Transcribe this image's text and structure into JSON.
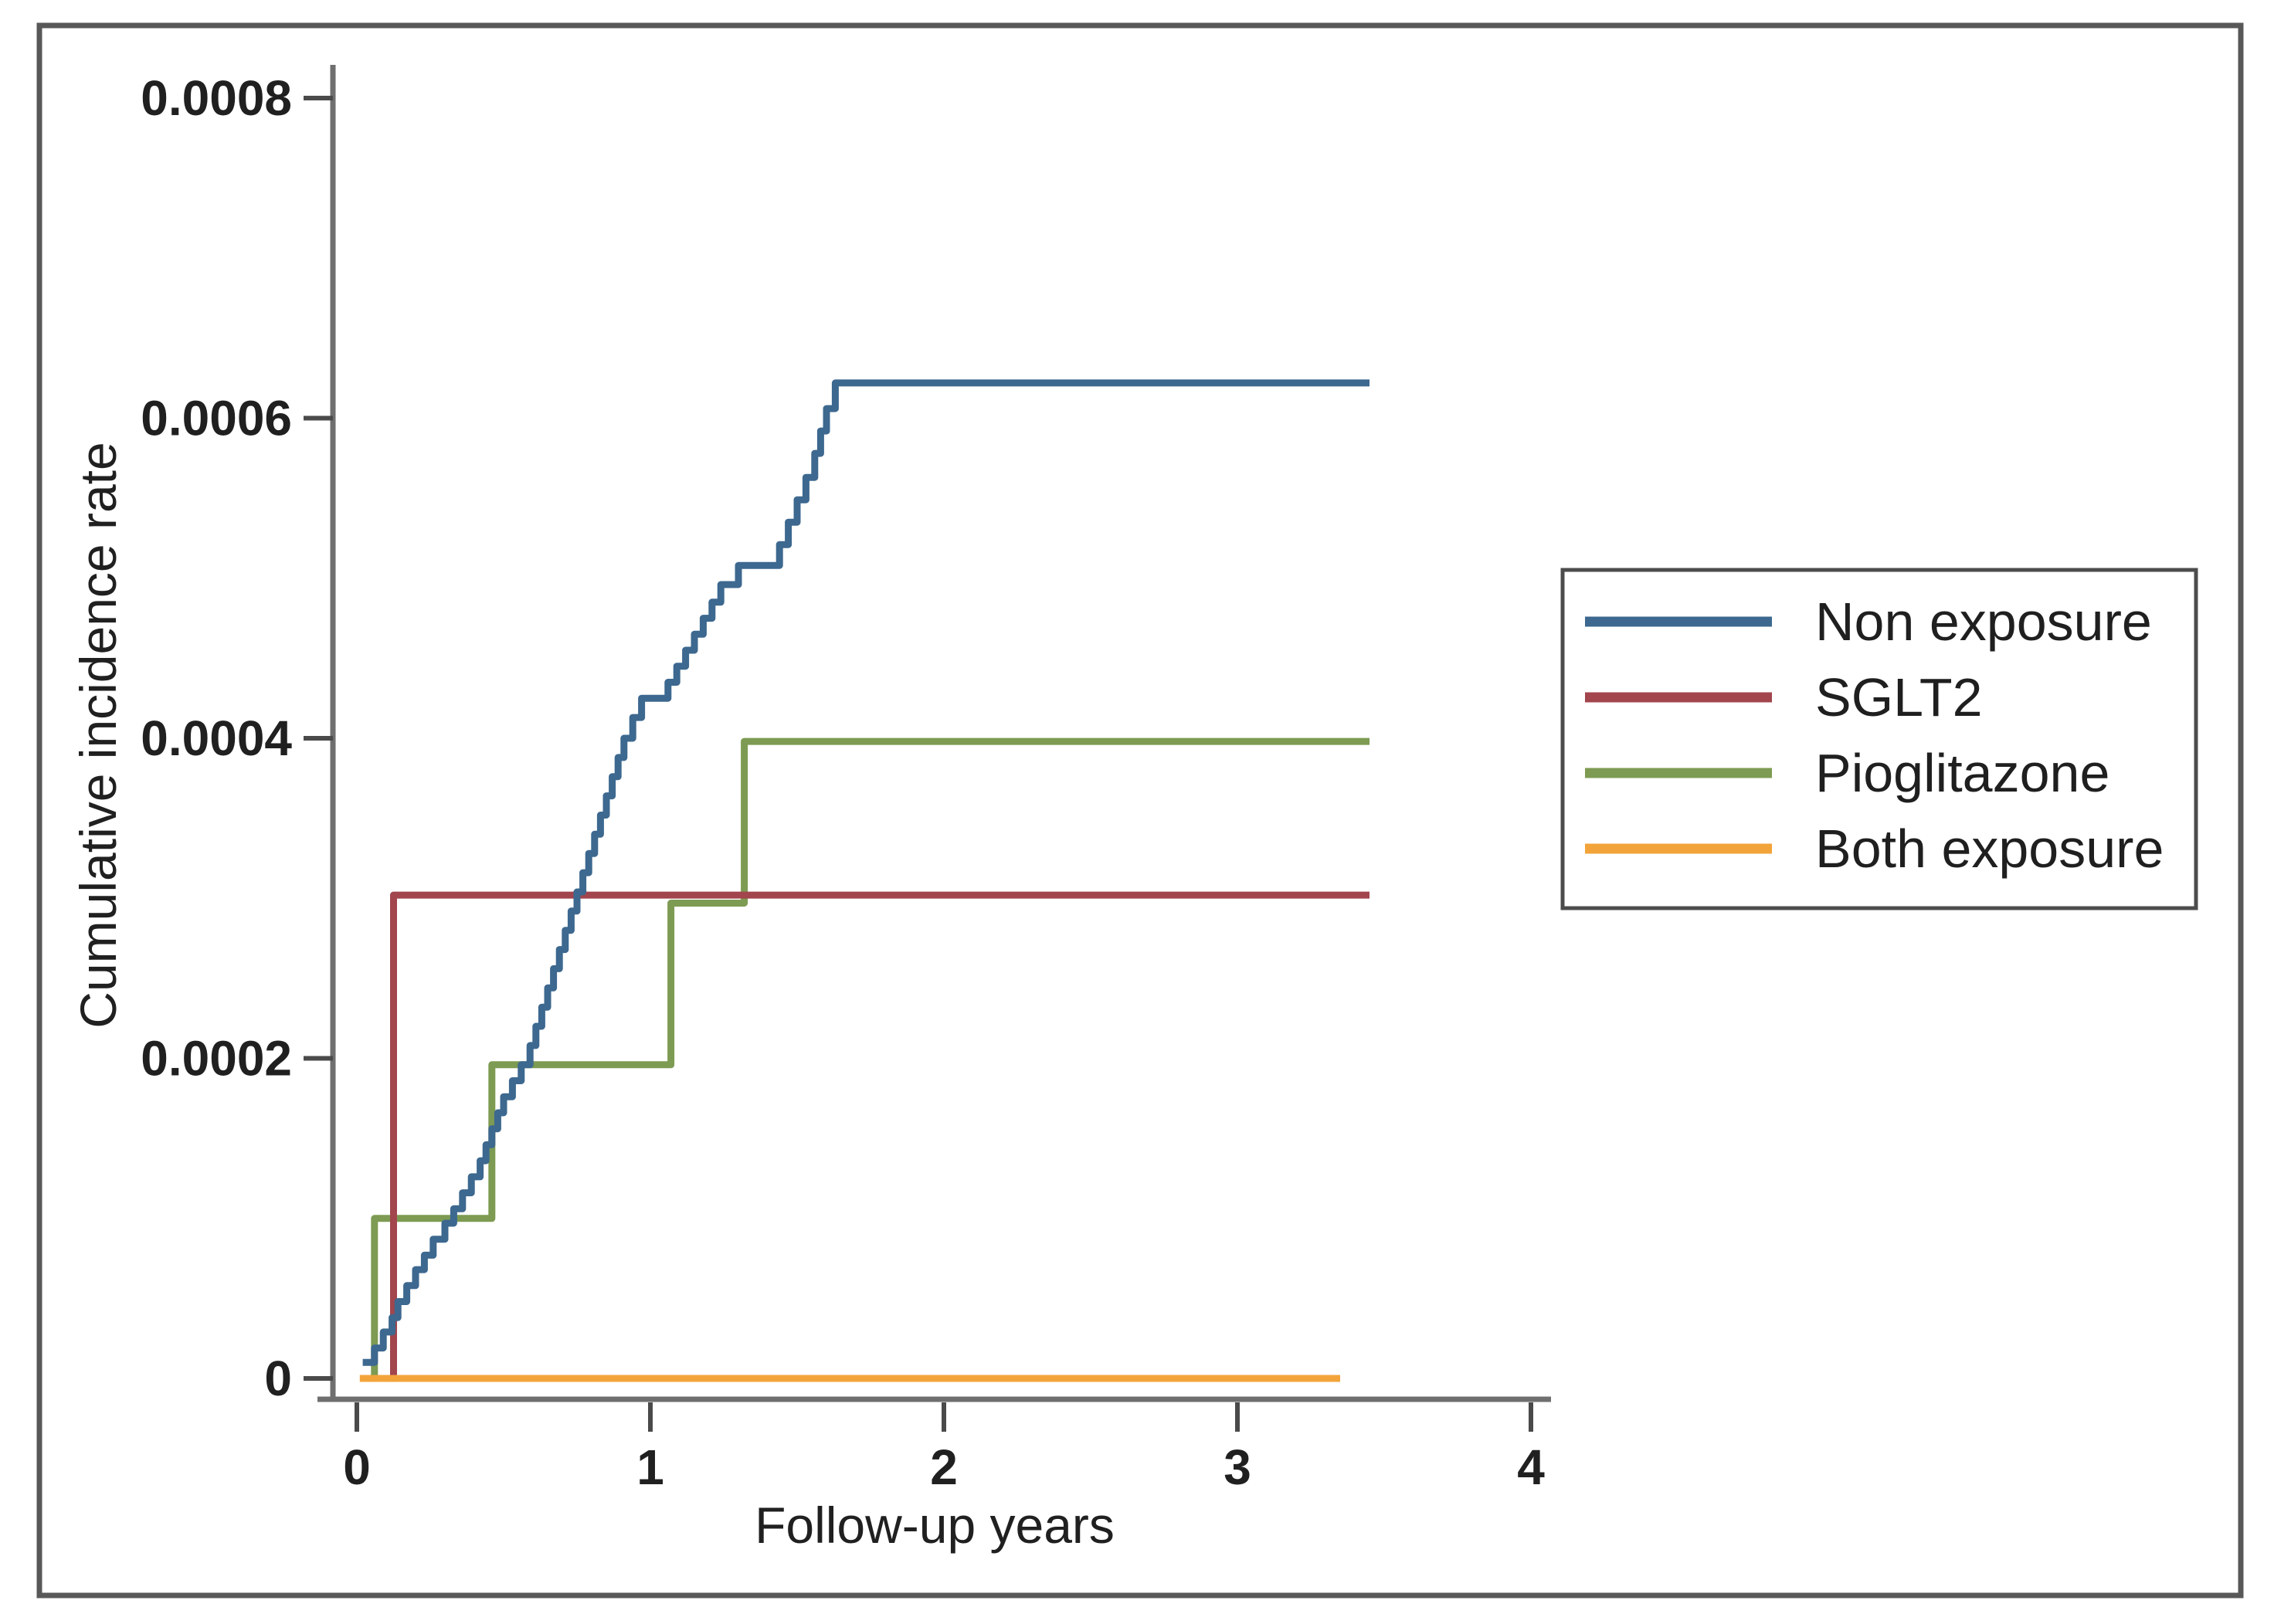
{
  "chart_data": {
    "type": "line",
    "subtype": "step-cumulative-incidence",
    "title": "",
    "xlabel": "Follow-up years",
    "ylabel": "Cumulative incidence rate",
    "xlim": [
      0,
      4
    ],
    "ylim": [
      0,
      0.0008
    ],
    "grid": false,
    "legend_position": "right-middle-outside-plot",
    "x_ticks": [
      {
        "value": 0,
        "label": "0"
      },
      {
        "value": 1,
        "label": "1"
      },
      {
        "value": 2,
        "label": "2"
      },
      {
        "value": 3,
        "label": "3"
      },
      {
        "value": 4,
        "label": "4"
      }
    ],
    "y_ticks": [
      {
        "value": 0,
        "label": "0"
      },
      {
        "value": 0.0002,
        "label": "0.0002"
      },
      {
        "value": 0.0004,
        "label": "0.0004"
      },
      {
        "value": 0.0006,
        "label": "0.0006"
      },
      {
        "value": 0.0008,
        "label": "0.0008"
      }
    ],
    "series": [
      {
        "name": "Non exposure",
        "color": "#3d688f",
        "end_x": 3.45,
        "points": [
          [
            0.02,
            1e-05
          ],
          [
            0.06,
            1.9e-05
          ],
          [
            0.09,
            2.9e-05
          ],
          [
            0.12,
            3.8e-05
          ],
          [
            0.14,
            4.8e-05
          ],
          [
            0.17,
            5.8e-05
          ],
          [
            0.2,
            6.8e-05
          ],
          [
            0.23,
            7.7e-05
          ],
          [
            0.26,
            8.7e-05
          ],
          [
            0.3,
            9.7e-05
          ],
          [
            0.33,
            0.000106
          ],
          [
            0.36,
            0.000116
          ],
          [
            0.39,
            0.000126
          ],
          [
            0.42,
            0.000136
          ],
          [
            0.44,
            0.000146
          ],
          [
            0.46,
            0.000156
          ],
          [
            0.48,
            0.000166
          ],
          [
            0.5,
            0.000176
          ],
          [
            0.53,
            0.000186
          ],
          [
            0.56,
            0.000196
          ],
          [
            0.59,
            0.000208
          ],
          [
            0.61,
            0.00022
          ],
          [
            0.63,
            0.000232
          ],
          [
            0.65,
            0.000244
          ],
          [
            0.67,
            0.000256
          ],
          [
            0.69,
            0.000268
          ],
          [
            0.71,
            0.00028
          ],
          [
            0.73,
            0.000292
          ],
          [
            0.75,
            0.000304
          ],
          [
            0.77,
            0.000316
          ],
          [
            0.79,
            0.000328
          ],
          [
            0.81,
            0.00034
          ],
          [
            0.83,
            0.000352
          ],
          [
            0.85,
            0.000364
          ],
          [
            0.87,
            0.000376
          ],
          [
            0.89,
            0.000388
          ],
          [
            0.91,
            0.0004
          ],
          [
            0.94,
            0.000413
          ],
          [
            0.97,
            0.000425
          ],
          [
            1.06,
            0.000435
          ],
          [
            1.09,
            0.000445
          ],
          [
            1.12,
            0.000455
          ],
          [
            1.15,
            0.000465
          ],
          [
            1.18,
            0.000475
          ],
          [
            1.21,
            0.000485
          ],
          [
            1.24,
            0.000496
          ],
          [
            1.3,
            0.000508
          ],
          [
            1.44,
            0.000521
          ],
          [
            1.47,
            0.000535
          ],
          [
            1.5,
            0.000549
          ],
          [
            1.53,
            0.000563
          ],
          [
            1.56,
            0.000578
          ],
          [
            1.58,
            0.000592
          ],
          [
            1.6,
            0.000606
          ],
          [
            1.63,
            0.000622
          ]
        ]
      },
      {
        "name": "SGLT2",
        "color": "#a2454d",
        "end_x": 3.45,
        "points": [
          [
            0.02,
            0
          ],
          [
            0.125,
            0.000302
          ]
        ]
      },
      {
        "name": "Pioglitazone",
        "color": "#7d9b52",
        "end_x": 3.45,
        "points": [
          [
            0.03,
            0
          ],
          [
            0.06,
            0.0001
          ],
          [
            0.46,
            0.000196
          ],
          [
            1.07,
            0.000297
          ],
          [
            1.32,
            0.000398
          ]
        ]
      },
      {
        "name": "Both exposure",
        "color": "#f2a43a",
        "end_x": 3.35,
        "points": [
          [
            0.01,
            0
          ]
        ]
      }
    ]
  }
}
